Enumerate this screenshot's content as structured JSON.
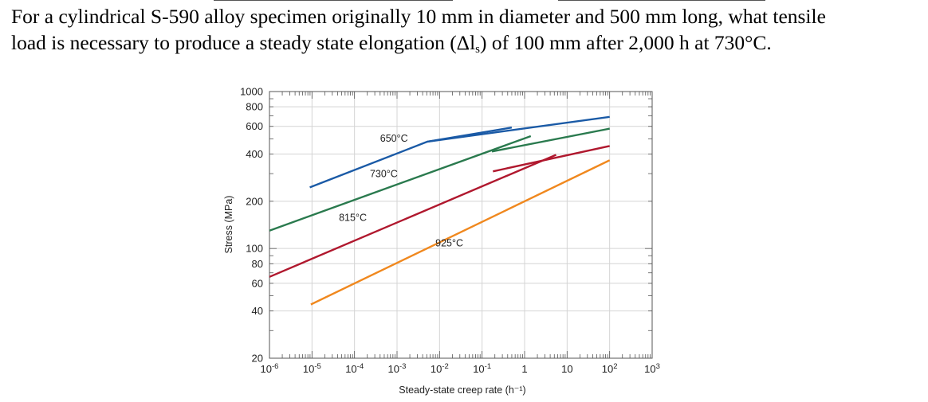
{
  "question": {
    "line1": "For a cylindrical S-590 alloy specimen originally 10 mm in diameter and 500 mm long, what tensile",
    "line2_before": "load is necessary to produce a steady state elongation (Δl",
    "line2_sub": "s",
    "line2_after": ") of 100 mm after 2,000 h at 730°C."
  },
  "chart_data": {
    "type": "line",
    "title": "",
    "xlabel": "Steady-state creep rate (h⁻¹)",
    "ylabel": "Stress (MPa)",
    "xscale": "log",
    "yscale": "log",
    "xlim": [
      1e-06,
      1000
    ],
    "ylim": [
      20,
      1000
    ],
    "x_tick_labels": [
      {
        "base": "10",
        "exp": "-6"
      },
      {
        "base": "10",
        "exp": "-5"
      },
      {
        "base": "10",
        "exp": "-4"
      },
      {
        "base": "10",
        "exp": "-3"
      },
      {
        "base": "10",
        "exp": "-2"
      },
      {
        "base": "10",
        "exp": "-1"
      },
      {
        "base": "1",
        "exp": ""
      },
      {
        "base": "10",
        "exp": ""
      },
      {
        "base": "10",
        "exp": "2"
      },
      {
        "base": "10",
        "exp": "3"
      }
    ],
    "y_tick_labels": [
      "1000",
      "800",
      "600",
      "400",
      "200",
      "100",
      "80",
      "60",
      "40",
      "20"
    ],
    "y_tick_values": [
      1000,
      800,
      600,
      400,
      200,
      100,
      80,
      60,
      40,
      20
    ],
    "series": [
      {
        "name": "650°C",
        "color": "#1a5aa6",
        "label_at": [
          0.0004,
          480
        ],
        "segments": [
          [
            [
              8.9e-06,
              245
            ],
            [
              0.0052,
              480
            ],
            [
              0.5,
              590
            ]
          ],
          [
            [
              0.0052,
              480
            ],
            [
              100,
              690
            ]
          ]
        ]
      },
      {
        "name": "730°C",
        "color": "#2a7a4e",
        "label_at": [
          0.00023,
          285
        ],
        "segments": [
          [
            [
              1e-06,
              130
            ],
            [
              1.4,
              520
            ]
          ],
          [
            [
              0.17,
              415
            ],
            [
              100,
              580
            ]
          ]
        ]
      },
      {
        "name": "815°C",
        "color": "#b0182e",
        "label_at": [
          4.3e-05,
          150
        ],
        "segments": [
          [
            [
              1e-06,
              66
            ],
            [
              5.5,
              395
            ]
          ],
          [
            [
              0.18,
              310
            ],
            [
              100,
              450
            ]
          ]
        ]
      },
      {
        "name": "925°C",
        "color": "#f0881e",
        "label_at": [
          0.008,
          103
        ],
        "segments": [
          [
            [
              9.4e-06,
              44
            ],
            [
              100,
              365
            ]
          ]
        ]
      }
    ]
  }
}
